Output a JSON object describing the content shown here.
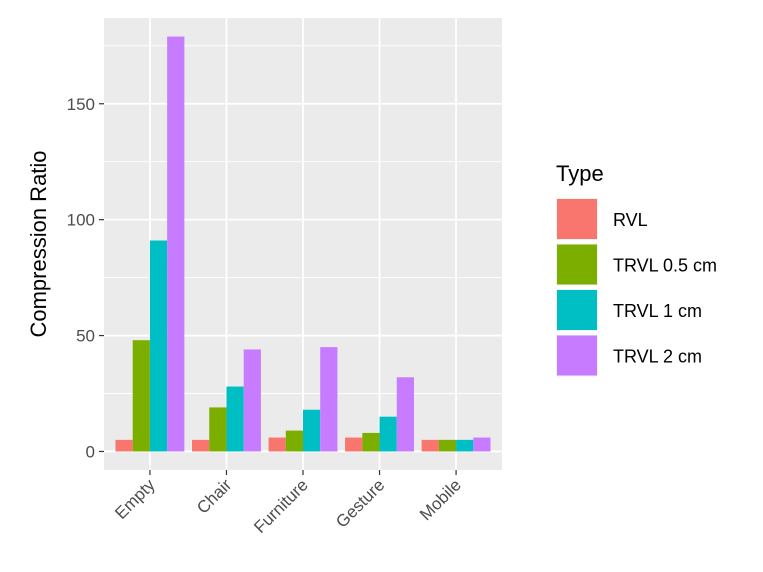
{
  "chart_data": {
    "type": "bar",
    "title": "",
    "xlabel": "",
    "ylabel": "Compression Ratio",
    "categories": [
      "Empty",
      "Chair",
      "Furniture",
      "Gesture",
      "Mobile"
    ],
    "series": [
      {
        "name": "RVL",
        "color": "#F8766D",
        "values": [
          5,
          5,
          6,
          6,
          5
        ]
      },
      {
        "name": "TRVL 0.5 cm",
        "color": "#7CAE00",
        "values": [
          48,
          19,
          9,
          8,
          5
        ]
      },
      {
        "name": "TRVL 1 cm",
        "color": "#00BFC4",
        "values": [
          91,
          28,
          18,
          15,
          5
        ]
      },
      {
        "name": "TRVL 2 cm",
        "color": "#C77CFF",
        "values": [
          179,
          44,
          45,
          32,
          6
        ]
      }
    ],
    "ylim": [
      -8,
      187
    ],
    "yticks": [
      0,
      50,
      100,
      150
    ],
    "ytick_labels": [
      "0",
      "50",
      "100",
      "150"
    ],
    "grid": true,
    "legend": {
      "title": "Type",
      "position": "right"
    }
  }
}
